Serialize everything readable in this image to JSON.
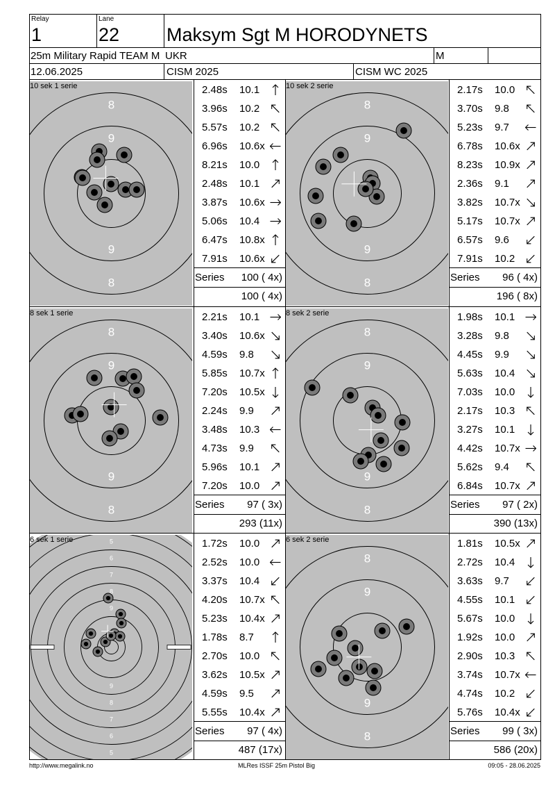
{
  "header": {
    "relay_label": "Relay",
    "relay_value": "1",
    "lane_label": "Lane",
    "lane_value": "22",
    "athlete_name": "Maksym Sgt M HORODYNETS",
    "event": "25m Military Rapid TEAM M",
    "nation": "UKR",
    "gender": "M",
    "date": "12.06.2025",
    "competition": "CISM 2025",
    "championship": "CISM WC 2025"
  },
  "series": [
    {
      "label": "10 sek 1 serie",
      "shots": [
        {
          "time": "2.48s",
          "score": "10.1",
          "dir": "N"
        },
        {
          "time": "3.96s",
          "score": "10.2",
          "dir": "NW"
        },
        {
          "time": "5.57s",
          "score": "10.2",
          "dir": "NW"
        },
        {
          "time": "6.96s",
          "score": "10.6x",
          "dir": "W"
        },
        {
          "time": "8.21s",
          "score": "10.0",
          "dir": "N"
        },
        {
          "time": "2.48s",
          "score": "10.1",
          "dir": "NE"
        },
        {
          "time": "3.87s",
          "score": "10.6x",
          "dir": "E"
        },
        {
          "time": "5.06s",
          "score": "10.4",
          "dir": "E"
        },
        {
          "time": "6.47s",
          "score": "10.8x",
          "dir": "N"
        },
        {
          "time": "7.91s",
          "score": "10.6x",
          "dir": "SW"
        }
      ],
      "series_label": "Series",
      "series_total": "100 ( 4x)",
      "cumulative": "100 ( 4x)"
    },
    {
      "label": "10 sek 2 serie",
      "shots": [
        {
          "time": "2.17s",
          "score": "10.0",
          "dir": "NW"
        },
        {
          "time": "3.70s",
          "score": "9.8",
          "dir": "NW"
        },
        {
          "time": "5.23s",
          "score": "9.7",
          "dir": "W"
        },
        {
          "time": "6.78s",
          "score": "10.6x",
          "dir": "NE"
        },
        {
          "time": "8.23s",
          "score": "10.9x",
          "dir": "NE"
        },
        {
          "time": "2.36s",
          "score": "9.1",
          "dir": "NE"
        },
        {
          "time": "3.82s",
          "score": "10.7x",
          "dir": "SE"
        },
        {
          "time": "5.17s",
          "score": "10.7x",
          "dir": "NE"
        },
        {
          "time": "6.57s",
          "score": "9.6",
          "dir": "SW"
        },
        {
          "time": "7.91s",
          "score": "10.2",
          "dir": "SW"
        }
      ],
      "series_label": "Series",
      "series_total": "96 ( 4x)",
      "cumulative": "196 ( 8x)"
    },
    {
      "label": "8 sek 1 serie",
      "shots": [
        {
          "time": "2.21s",
          "score": "10.1",
          "dir": "E"
        },
        {
          "time": "3.40s",
          "score": "10.6x",
          "dir": "SE"
        },
        {
          "time": "4.59s",
          "score": "9.8",
          "dir": "SE"
        },
        {
          "time": "5.85s",
          "score": "10.7x",
          "dir": "N"
        },
        {
          "time": "7.20s",
          "score": "10.5x",
          "dir": "S"
        },
        {
          "time": "2.24s",
          "score": "9.9",
          "dir": "NE"
        },
        {
          "time": "3.48s",
          "score": "10.3",
          "dir": "W"
        },
        {
          "time": "4.73s",
          "score": "9.9",
          "dir": "NW"
        },
        {
          "time": "5.96s",
          "score": "10.1",
          "dir": "NE"
        },
        {
          "time": "7.20s",
          "score": "10.0",
          "dir": "NE"
        }
      ],
      "series_label": "Series",
      "series_total": "97 ( 3x)",
      "cumulative": "293 (11x)"
    },
    {
      "label": "8 sek 2 serie",
      "shots": [
        {
          "time": "1.98s",
          "score": "10.1",
          "dir": "E"
        },
        {
          "time": "3.28s",
          "score": "9.8",
          "dir": "SE"
        },
        {
          "time": "4.45s",
          "score": "9.9",
          "dir": "SE"
        },
        {
          "time": "5.63s",
          "score": "10.4",
          "dir": "SE"
        },
        {
          "time": "7.03s",
          "score": "10.0",
          "dir": "S"
        },
        {
          "time": "2.17s",
          "score": "10.3",
          "dir": "NW"
        },
        {
          "time": "3.27s",
          "score": "10.1",
          "dir": "S"
        },
        {
          "time": "4.42s",
          "score": "10.7x",
          "dir": "E"
        },
        {
          "time": "5.62s",
          "score": "9.4",
          "dir": "NW"
        },
        {
          "time": "6.84s",
          "score": "10.7x",
          "dir": "NE"
        }
      ],
      "series_label": "Series",
      "series_total": "97 ( 2x)",
      "cumulative": "390 (13x)"
    },
    {
      "label": "6 sek 1 serie",
      "shots": [
        {
          "time": "1.72s",
          "score": "10.0",
          "dir": "NE"
        },
        {
          "time": "2.52s",
          "score": "10.0",
          "dir": "W"
        },
        {
          "time": "3.37s",
          "score": "10.4",
          "dir": "SW"
        },
        {
          "time": "4.20s",
          "score": "10.7x",
          "dir": "NW"
        },
        {
          "time": "5.23s",
          "score": "10.4x",
          "dir": "NE"
        },
        {
          "time": "1.78s",
          "score": "8.7",
          "dir": "N"
        },
        {
          "time": "2.70s",
          "score": "10.0",
          "dir": "NW"
        },
        {
          "time": "3.62s",
          "score": "10.5x",
          "dir": "NE"
        },
        {
          "time": "4.59s",
          "score": "9.5",
          "dir": "NE"
        },
        {
          "time": "5.55s",
          "score": "10.4x",
          "dir": "NE"
        }
      ],
      "series_label": "Series",
      "series_total": "97 ( 4x)",
      "cumulative": "487 (17x)"
    },
    {
      "label": "6 sek 2 serie",
      "shots": [
        {
          "time": "1.81s",
          "score": "10.5x",
          "dir": "NE"
        },
        {
          "time": "2.72s",
          "score": "10.4",
          "dir": "S"
        },
        {
          "time": "3.63s",
          "score": "9.7",
          "dir": "SW"
        },
        {
          "time": "4.55s",
          "score": "10.1",
          "dir": "SW"
        },
        {
          "time": "5.67s",
          "score": "10.0",
          "dir": "S"
        },
        {
          "time": "1.92s",
          "score": "10.0",
          "dir": "NE"
        },
        {
          "time": "2.90s",
          "score": "10.3",
          "dir": "NW"
        },
        {
          "time": "3.74s",
          "score": "10.7x",
          "dir": "W"
        },
        {
          "time": "4.74s",
          "score": "10.2",
          "dir": "SW"
        },
        {
          "time": "5.76s",
          "score": "10.4x",
          "dir": "SW"
        }
      ],
      "series_label": "Series",
      "series_total": "99 ( 3x)",
      "cumulative": "586 (20x)"
    }
  ],
  "rapid_ring_labels": [
    "8",
    "9",
    "9",
    "8"
  ],
  "precision_ring_labels": [
    "5",
    "6",
    "7",
    "8",
    "9",
    "9",
    "8",
    "7",
    "6",
    "5"
  ],
  "footer": {
    "left": "http://www.megalink.no",
    "center": "MLRes ISSF 25m Pistol Big",
    "right": "09:05 - 28.06.2025"
  }
}
